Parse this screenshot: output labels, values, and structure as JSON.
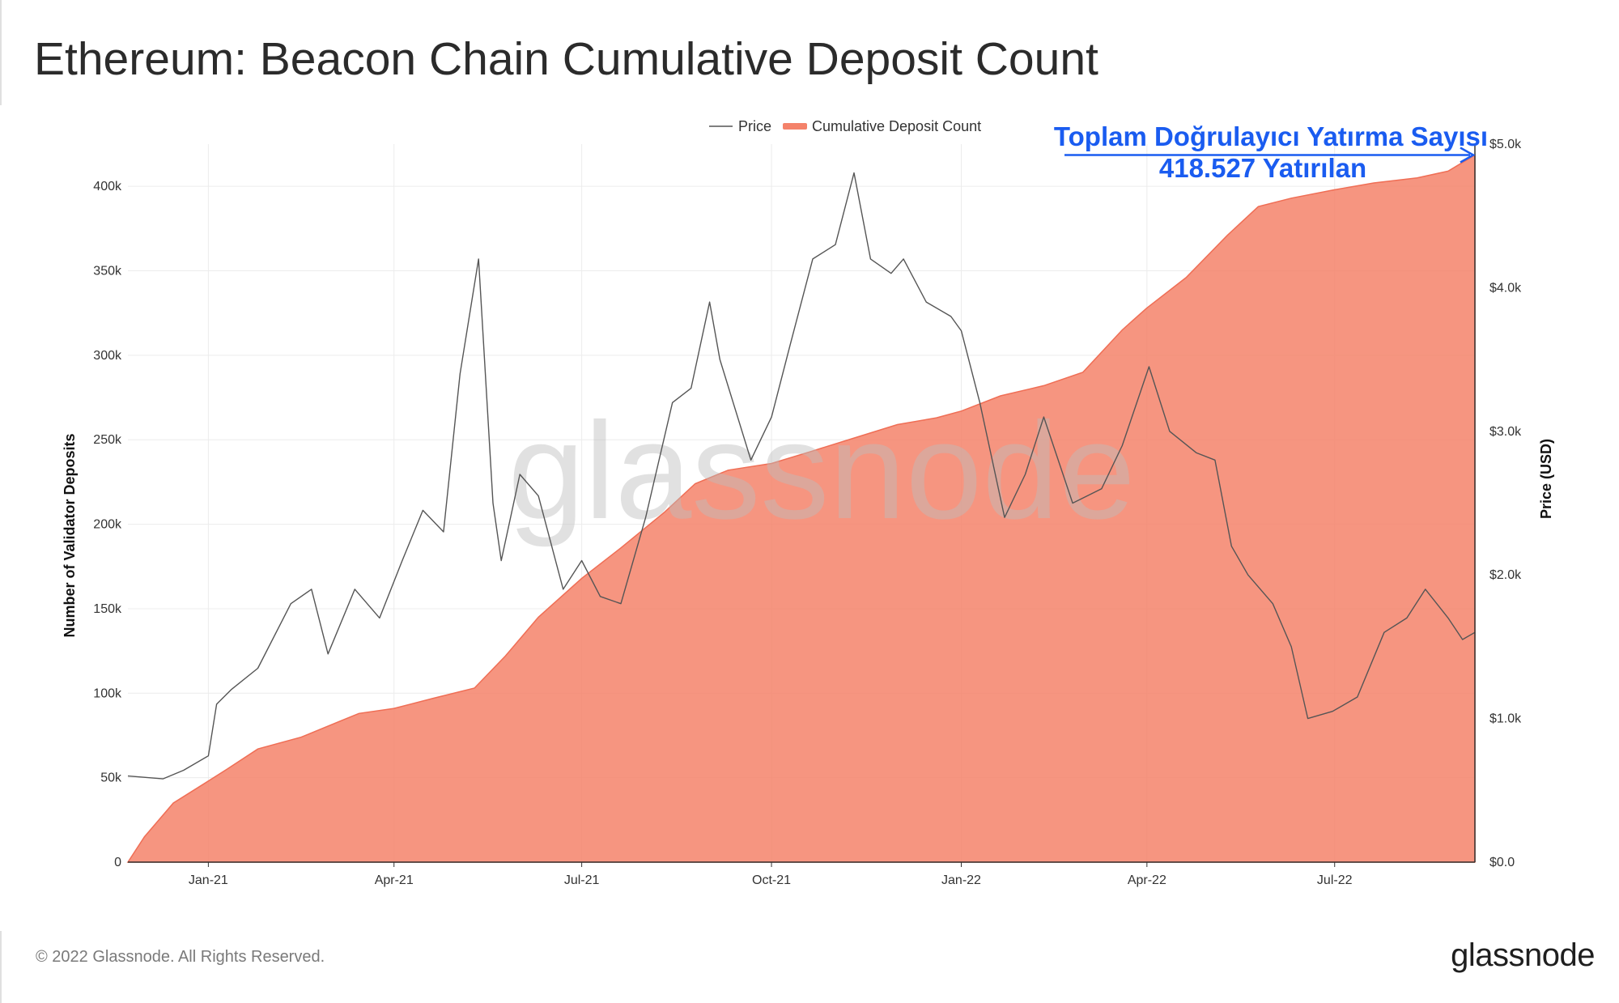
{
  "title": "Ethereum: Beacon Chain Cumulative Deposit Count",
  "footer": {
    "copyright": "© 2022 Glassnode. All Rights Reserved.",
    "brand": "glassnode"
  },
  "watermark": "glassnode",
  "chart_data": {
    "type": "area",
    "title": "Ethereum: Beacon Chain Cumulative Deposit Count",
    "legend": {
      "position": "top-right",
      "entries": [
        {
          "name": "Price",
          "kind": "line",
          "color": "#555555"
        },
        {
          "name": "Cumulative Deposit Count",
          "kind": "area",
          "color": "#f4826a"
        }
      ]
    },
    "x_axis": {
      "range": [
        "2020-11-23",
        "2022-09-07"
      ],
      "ticks": [
        {
          "date": "2021-01-01",
          "label": "Jan-21"
        },
        {
          "date": "2021-04-01",
          "label": "Apr-21"
        },
        {
          "date": "2021-07-01",
          "label": "Jul-21"
        },
        {
          "date": "2021-10-01",
          "label": "Oct-21"
        },
        {
          "date": "2022-01-01",
          "label": "Jan-22"
        },
        {
          "date": "2022-04-01",
          "label": "Apr-22"
        },
        {
          "date": "2022-07-01",
          "label": "Jul-22"
        }
      ]
    },
    "y_left": {
      "label": "Number of Validator Deposits",
      "range": [
        0,
        425000
      ],
      "ticks": [
        {
          "value": 0,
          "label": "0"
        },
        {
          "value": 50000,
          "label": "50k"
        },
        {
          "value": 100000,
          "label": "100k"
        },
        {
          "value": 150000,
          "label": "150k"
        },
        {
          "value": 200000,
          "label": "200k"
        },
        {
          "value": 250000,
          "label": "250k"
        },
        {
          "value": 300000,
          "label": "300k"
        },
        {
          "value": 350000,
          "label": "350k"
        },
        {
          "value": 400000,
          "label": "400k"
        }
      ]
    },
    "y_right": {
      "label": "Price (USD)",
      "range": [
        0,
        5000
      ],
      "ticks": [
        {
          "value": 0,
          "label": "$0.0"
        },
        {
          "value": 1000,
          "label": "$1.0k"
        },
        {
          "value": 2000,
          "label": "$2.0k"
        },
        {
          "value": 3000,
          "label": "$3.0k"
        },
        {
          "value": 4000,
          "label": "$4.0k"
        },
        {
          "value": 5000,
          "label": "$5.0k"
        }
      ]
    },
    "grid": true,
    "series": [
      {
        "name": "Cumulative Deposit Count",
        "type": "area",
        "axis": "left",
        "color": "#f4826a",
        "x": [
          "2020-11-23",
          "2020-12-01",
          "2020-12-15",
          "2021-01-01",
          "2021-01-10",
          "2021-01-25",
          "2021-02-15",
          "2021-03-01",
          "2021-03-15",
          "2021-04-01",
          "2021-04-20",
          "2021-05-10",
          "2021-05-25",
          "2021-06-10",
          "2021-07-01",
          "2021-07-20",
          "2021-08-10",
          "2021-08-25",
          "2021-09-10",
          "2021-10-01",
          "2021-10-20",
          "2021-11-10",
          "2021-12-01",
          "2021-12-20",
          "2022-01-01",
          "2022-01-20",
          "2022-02-10",
          "2022-03-01",
          "2022-03-20",
          "2022-04-01",
          "2022-04-20",
          "2022-05-10",
          "2022-05-25",
          "2022-06-10",
          "2022-07-01",
          "2022-07-20",
          "2022-08-10",
          "2022-08-25",
          "2022-09-07"
        ],
        "y": [
          0,
          15000,
          35000,
          48000,
          55000,
          67000,
          74000,
          81000,
          88000,
          91000,
          97000,
          103000,
          122000,
          145000,
          168000,
          186000,
          207000,
          224000,
          232000,
          236000,
          243000,
          251000,
          259000,
          263000,
          267000,
          276000,
          282000,
          290000,
          315000,
          328000,
          346000,
          371000,
          388000,
          393000,
          398000,
          402000,
          405000,
          409000,
          418527
        ]
      },
      {
        "name": "Price",
        "type": "line",
        "axis": "right",
        "color": "#555555",
        "x": [
          "2020-11-23",
          "2020-12-10",
          "2020-12-20",
          "2021-01-01",
          "2021-01-05",
          "2021-01-12",
          "2021-01-25",
          "2021-02-10",
          "2021-02-20",
          "2021-02-28",
          "2021-03-13",
          "2021-03-25",
          "2021-04-05",
          "2021-04-15",
          "2021-04-25",
          "2021-05-03",
          "2021-05-12",
          "2021-05-19",
          "2021-05-23",
          "2021-06-01",
          "2021-06-10",
          "2021-06-22",
          "2021-07-01",
          "2021-07-10",
          "2021-07-20",
          "2021-08-01",
          "2021-08-14",
          "2021-08-23",
          "2021-09-01",
          "2021-09-06",
          "2021-09-21",
          "2021-10-01",
          "2021-10-10",
          "2021-10-21",
          "2021-11-01",
          "2021-11-10",
          "2021-11-18",
          "2021-11-28",
          "2021-12-04",
          "2021-12-15",
          "2021-12-27",
          "2022-01-01",
          "2022-01-10",
          "2022-01-22",
          "2022-02-01",
          "2022-02-10",
          "2022-02-24",
          "2022-03-10",
          "2022-03-20",
          "2022-04-02",
          "2022-04-12",
          "2022-04-25",
          "2022-05-04",
          "2022-05-12",
          "2022-05-20",
          "2022-06-01",
          "2022-06-10",
          "2022-06-18",
          "2022-06-30",
          "2022-07-12",
          "2022-07-25",
          "2022-08-05",
          "2022-08-14",
          "2022-08-25",
          "2022-09-01",
          "2022-09-07"
        ],
        "y": [
          600,
          580,
          640,
          740,
          1100,
          1200,
          1350,
          1800,
          1900,
          1450,
          1900,
          1700,
          2100,
          2450,
          2300,
          3400,
          4200,
          2500,
          2100,
          2700,
          2550,
          1900,
          2100,
          1850,
          1800,
          2400,
          3200,
          3300,
          3900,
          3500,
          2800,
          3100,
          3600,
          4200,
          4300,
          4800,
          4200,
          4100,
          4200,
          3900,
          3800,
          3700,
          3200,
          2400,
          2700,
          3100,
          2500,
          2600,
          2900,
          3450,
          3000,
          2850,
          2800,
          2200,
          2000,
          1800,
          1500,
          1000,
          1050,
          1150,
          1600,
          1700,
          1900,
          1700,
          1550,
          1600
        ]
      }
    ],
    "annotation": {
      "lines": [
        "Toplam Doğrulayıcı Yatırma Sayısı",
        "418.527 Yatırılan"
      ],
      "color": "#1a5cf0",
      "points_to": {
        "date": "2022-09-07",
        "value": 418527
      }
    }
  }
}
